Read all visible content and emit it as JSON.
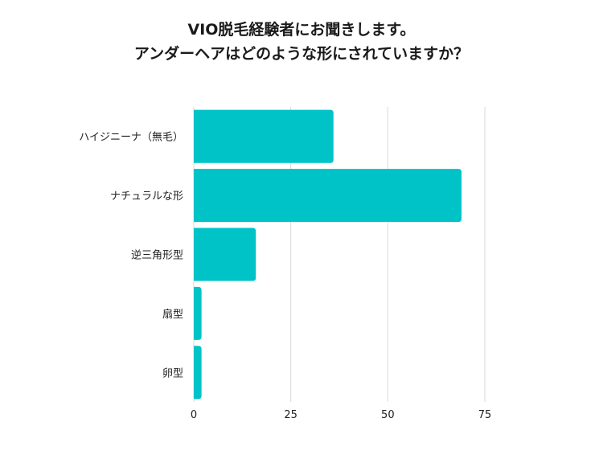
{
  "chart_data": {
    "type": "bar",
    "orientation": "horizontal",
    "title_lines": [
      "VIO脱毛経験者にお聞きします。",
      "アンダーヘアはどのような形にされていますか？"
    ],
    "categories": [
      "ハイジニーナ（無毛）",
      "ナチュラルな形",
      "逆三角形型",
      "扇型",
      "卵型"
    ],
    "values": [
      36,
      69,
      16,
      2,
      2
    ],
    "xlim": [
      0,
      75
    ],
    "xticks": [
      "0",
      "25",
      "50",
      "75"
    ],
    "xlabel": "",
    "ylabel": "",
    "grid": true,
    "bar_color": "#00c3c8",
    "grid_color": "#d9d9d9"
  }
}
